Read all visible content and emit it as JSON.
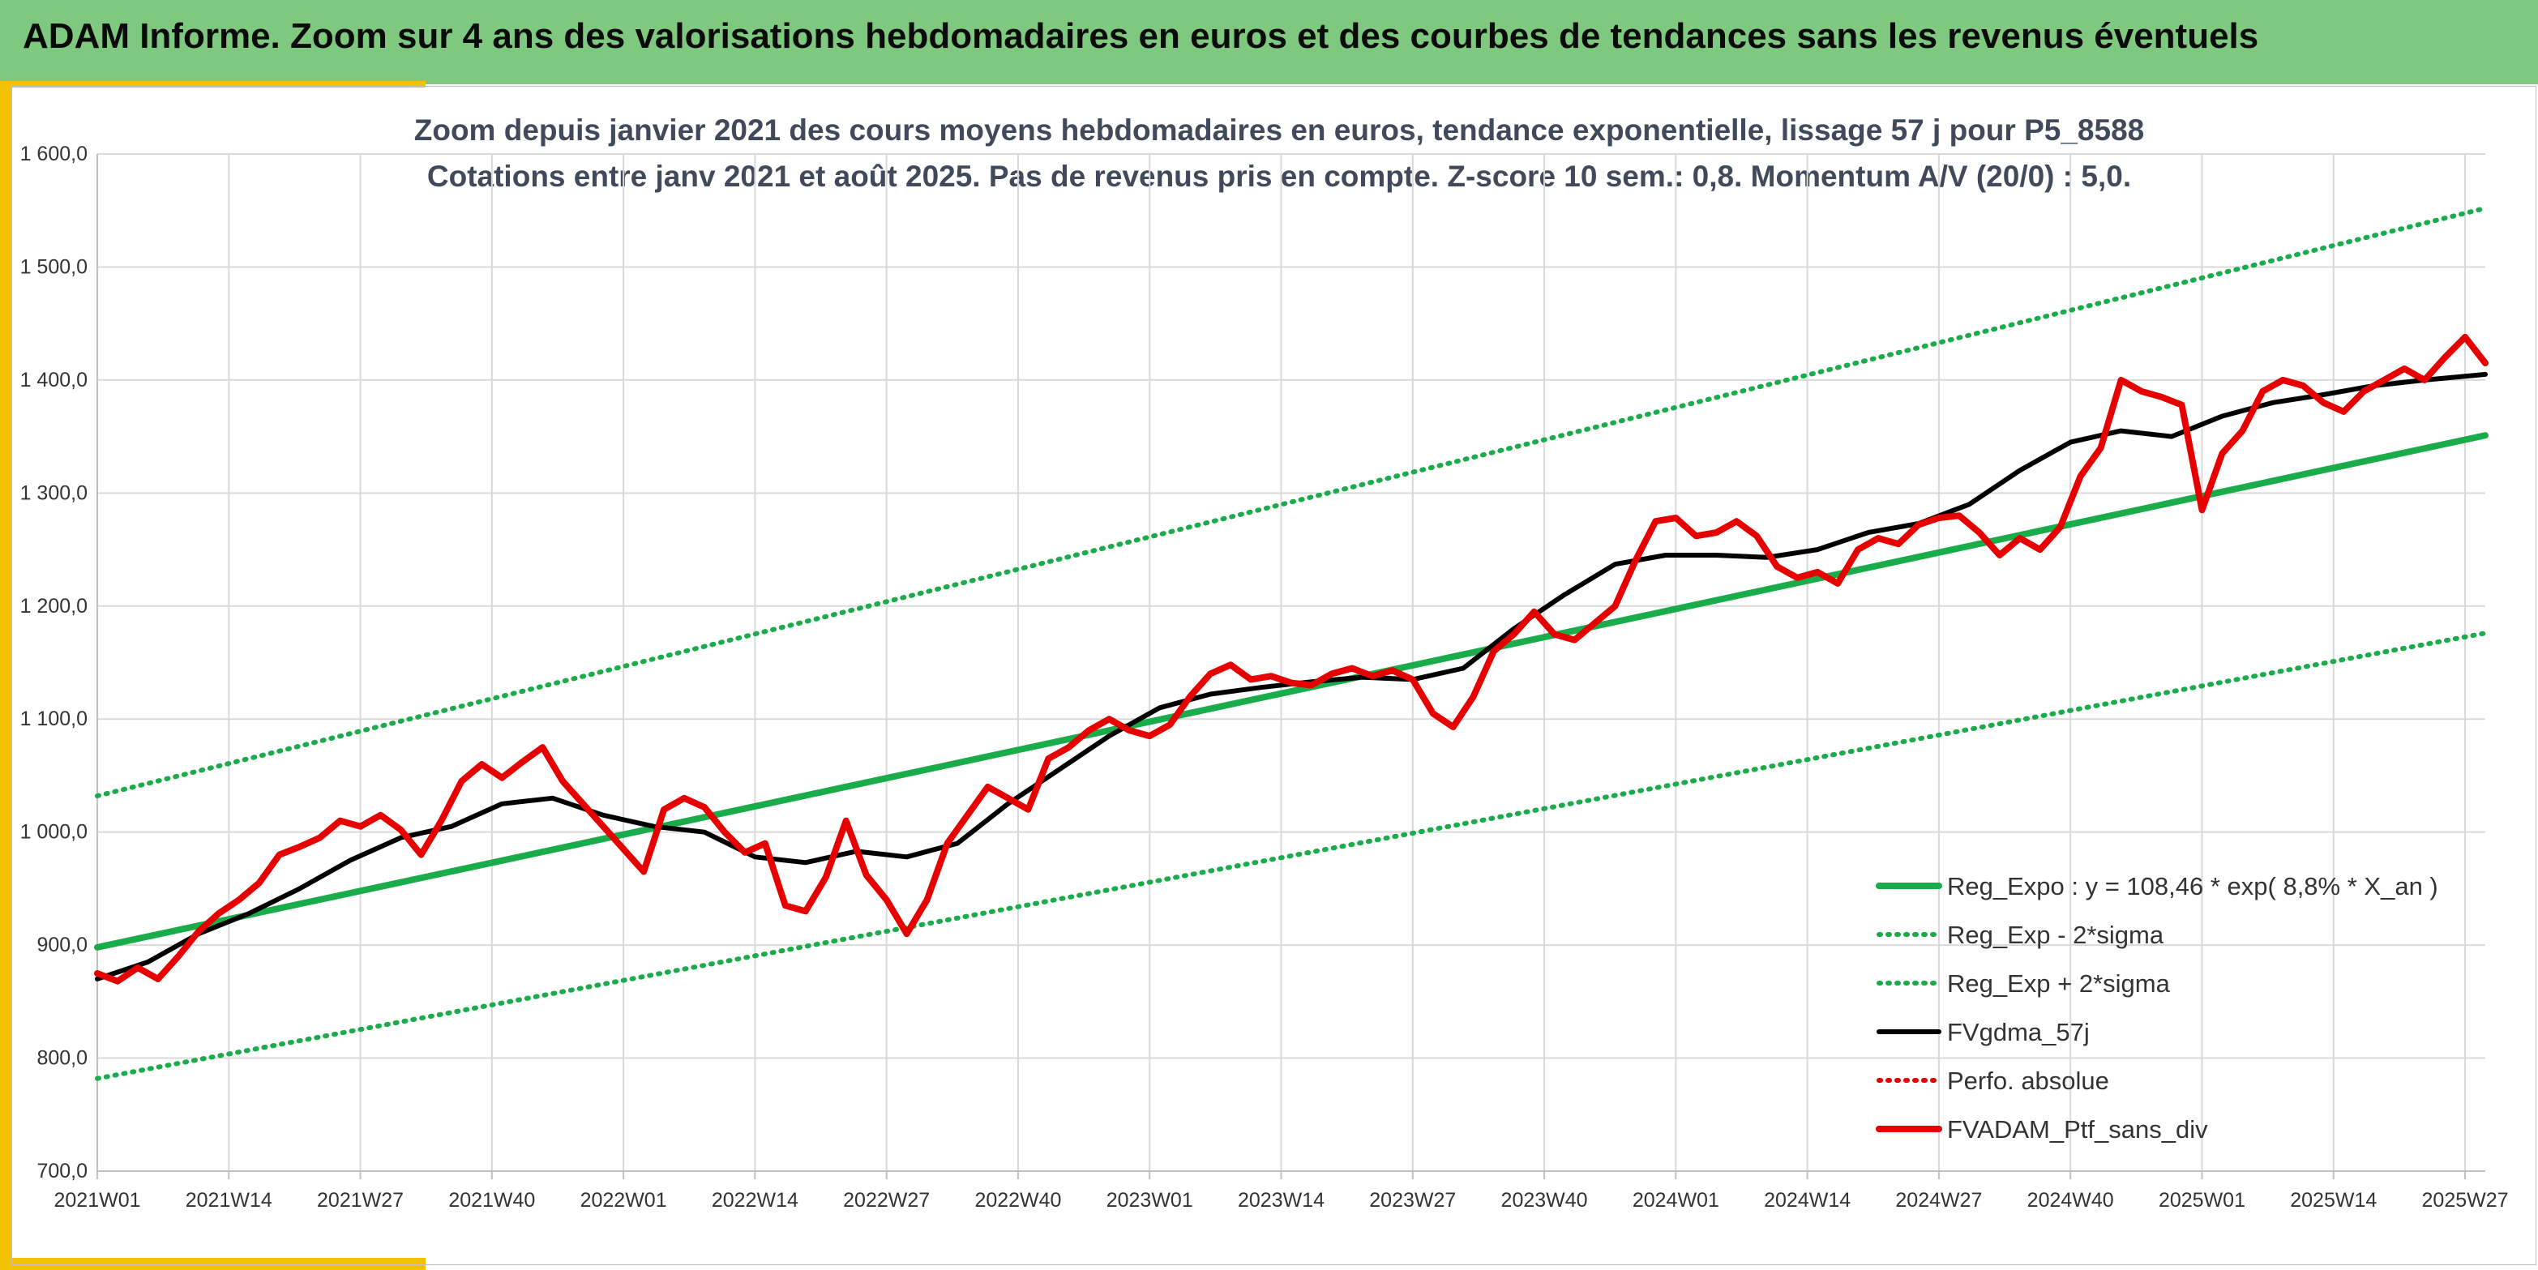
{
  "header": {
    "title": "ADAM Informe. Zoom sur 4 ans des valorisations hebdomadaires en euros et des courbes de tendances sans les revenus éventuels"
  },
  "colors": {
    "header_bg": "#7ec87f",
    "accent": "#f2c200",
    "trend": "#1aab4b",
    "band": "#1aab4b",
    "smooth": "#000000",
    "portfolio": "#e60000"
  },
  "chart_data": {
    "type": "line",
    "title": "Zoom depuis janvier 2021 des cours moyens hebdomadaires en euros, tendance exponentielle, lissage 57 j pour P5_8588",
    "subtitle": "Cotations entre janv 2021 et août 2025. Pas de revenus pris en compte. Z-score 10 sem.: 0,8. Momentum A/V (20/0) : 5,0.",
    "xlabel": "",
    "ylabel": "",
    "ylim": [
      700,
      1600
    ],
    "y_ticks": [
      "700,0",
      "800,0",
      "900,0",
      "1 000,0",
      "1 100,0",
      "1 200,0",
      "1 300,0",
      "1 400,0",
      "1 500,0",
      "1 600,0"
    ],
    "x_ticks": [
      "2021W01",
      "2021W14",
      "2021W27",
      "2021W40",
      "2022W01",
      "2022W14",
      "2022W27",
      "2022W40",
      "2023W01",
      "2023W14",
      "2023W27",
      "2023W40",
      "2024W01",
      "2024W14",
      "2024W27",
      "2024W40",
      "2025W01",
      "2025W14",
      "2025W27"
    ],
    "x_unit": "weeks since 2021W01",
    "grid": true,
    "legend_position": "bottom-right",
    "series": [
      {
        "name": "Reg_Expo : y = 108,46 * exp( 8,8% *  X_an )",
        "style": "solid-thick",
        "color": "#1aab4b",
        "x": [
          0,
          236
        ],
        "values": [
          898,
          1351
        ]
      },
      {
        "name": "Reg_Exp - 2*sigma",
        "style": "dotted",
        "color": "#1aab4b",
        "x": [
          0,
          236
        ],
        "values": [
          782,
          1176
        ]
      },
      {
        "name": "Reg_Exp + 2*sigma",
        "style": "dotted",
        "color": "#1aab4b",
        "x": [
          0,
          236
        ],
        "values": [
          1032,
          1552
        ]
      },
      {
        "name": "FVgdma_57j",
        "style": "solid",
        "color": "#000000",
        "x": [
          0,
          5,
          10,
          15,
          20,
          25,
          30,
          35,
          40,
          45,
          50,
          55,
          60,
          65,
          70,
          75,
          80,
          85,
          90,
          95,
          100,
          105,
          110,
          115,
          120,
          125,
          130,
          135,
          140,
          145,
          150,
          155,
          160,
          165,
          170,
          175,
          180,
          185,
          190,
          195,
          200,
          205,
          210,
          215,
          220,
          225,
          230,
          236
        ],
        "values": [
          870,
          885,
          910,
          928,
          950,
          975,
          995,
          1005,
          1025,
          1030,
          1015,
          1005,
          1000,
          978,
          973,
          983,
          978,
          990,
          1025,
          1055,
          1085,
          1110,
          1122,
          1128,
          1133,
          1137,
          1135,
          1145,
          1180,
          1210,
          1237,
          1245,
          1245,
          1243,
          1250,
          1265,
          1273,
          1290,
          1320,
          1345,
          1355,
          1350,
          1368,
          1380,
          1387,
          1395,
          1400,
          1405
        ]
      },
      {
        "name": "Perfo. absolue",
        "style": "dotted",
        "color": "#e60000",
        "x": [],
        "values": []
      },
      {
        "name": "FVADAM_Ptf_sans_div",
        "style": "solid-thick",
        "color": "#e60000",
        "x": [
          0,
          2,
          4,
          6,
          8,
          10,
          12,
          14,
          16,
          18,
          20,
          22,
          24,
          26,
          28,
          30,
          32,
          34,
          36,
          38,
          40,
          42,
          44,
          46,
          48,
          50,
          52,
          54,
          56,
          58,
          60,
          62,
          64,
          66,
          68,
          70,
          72,
          74,
          76,
          78,
          80,
          82,
          84,
          86,
          88,
          90,
          92,
          94,
          96,
          98,
          100,
          102,
          104,
          106,
          108,
          110,
          112,
          114,
          116,
          118,
          120,
          122,
          124,
          126,
          128,
          130,
          132,
          134,
          136,
          138,
          140,
          142,
          144,
          146,
          148,
          150,
          152,
          154,
          156,
          158,
          160,
          162,
          164,
          166,
          168,
          170,
          172,
          174,
          176,
          178,
          180,
          182,
          184,
          186,
          188,
          190,
          192,
          194,
          196,
          198,
          200,
          202,
          204,
          206,
          208,
          210,
          212,
          214,
          216,
          218,
          220,
          222,
          224,
          226,
          228,
          230,
          232,
          234,
          236
        ],
        "values": [
          875,
          868,
          880,
          870,
          890,
          912,
          928,
          940,
          955,
          980,
          987,
          995,
          1010,
          1005,
          1015,
          1002,
          980,
          1010,
          1045,
          1060,
          1048,
          1062,
          1075,
          1045,
          1025,
          1005,
          985,
          965,
          1020,
          1030,
          1022,
          1000,
          982,
          990,
          935,
          930,
          960,
          1010,
          962,
          940,
          910,
          940,
          990,
          1015,
          1040,
          1030,
          1020,
          1065,
          1075,
          1090,
          1100,
          1090,
          1085,
          1095,
          1120,
          1140,
          1148,
          1135,
          1138,
          1132,
          1130,
          1140,
          1145,
          1138,
          1143,
          1135,
          1105,
          1093,
          1120,
          1160,
          1175,
          1195,
          1175,
          1170,
          1185,
          1200,
          1240,
          1275,
          1278,
          1262,
          1265,
          1275,
          1262,
          1235,
          1225,
          1230,
          1220,
          1250,
          1260,
          1255,
          1272,
          1278,
          1280,
          1265,
          1245,
          1260,
          1250,
          1270,
          1315,
          1340,
          1400,
          1390,
          1385,
          1378,
          1285,
          1335,
          1355,
          1390,
          1400,
          1395,
          1380,
          1372,
          1390,
          1400,
          1410,
          1400,
          1420,
          1438,
          1415
        ]
      }
    ]
  }
}
